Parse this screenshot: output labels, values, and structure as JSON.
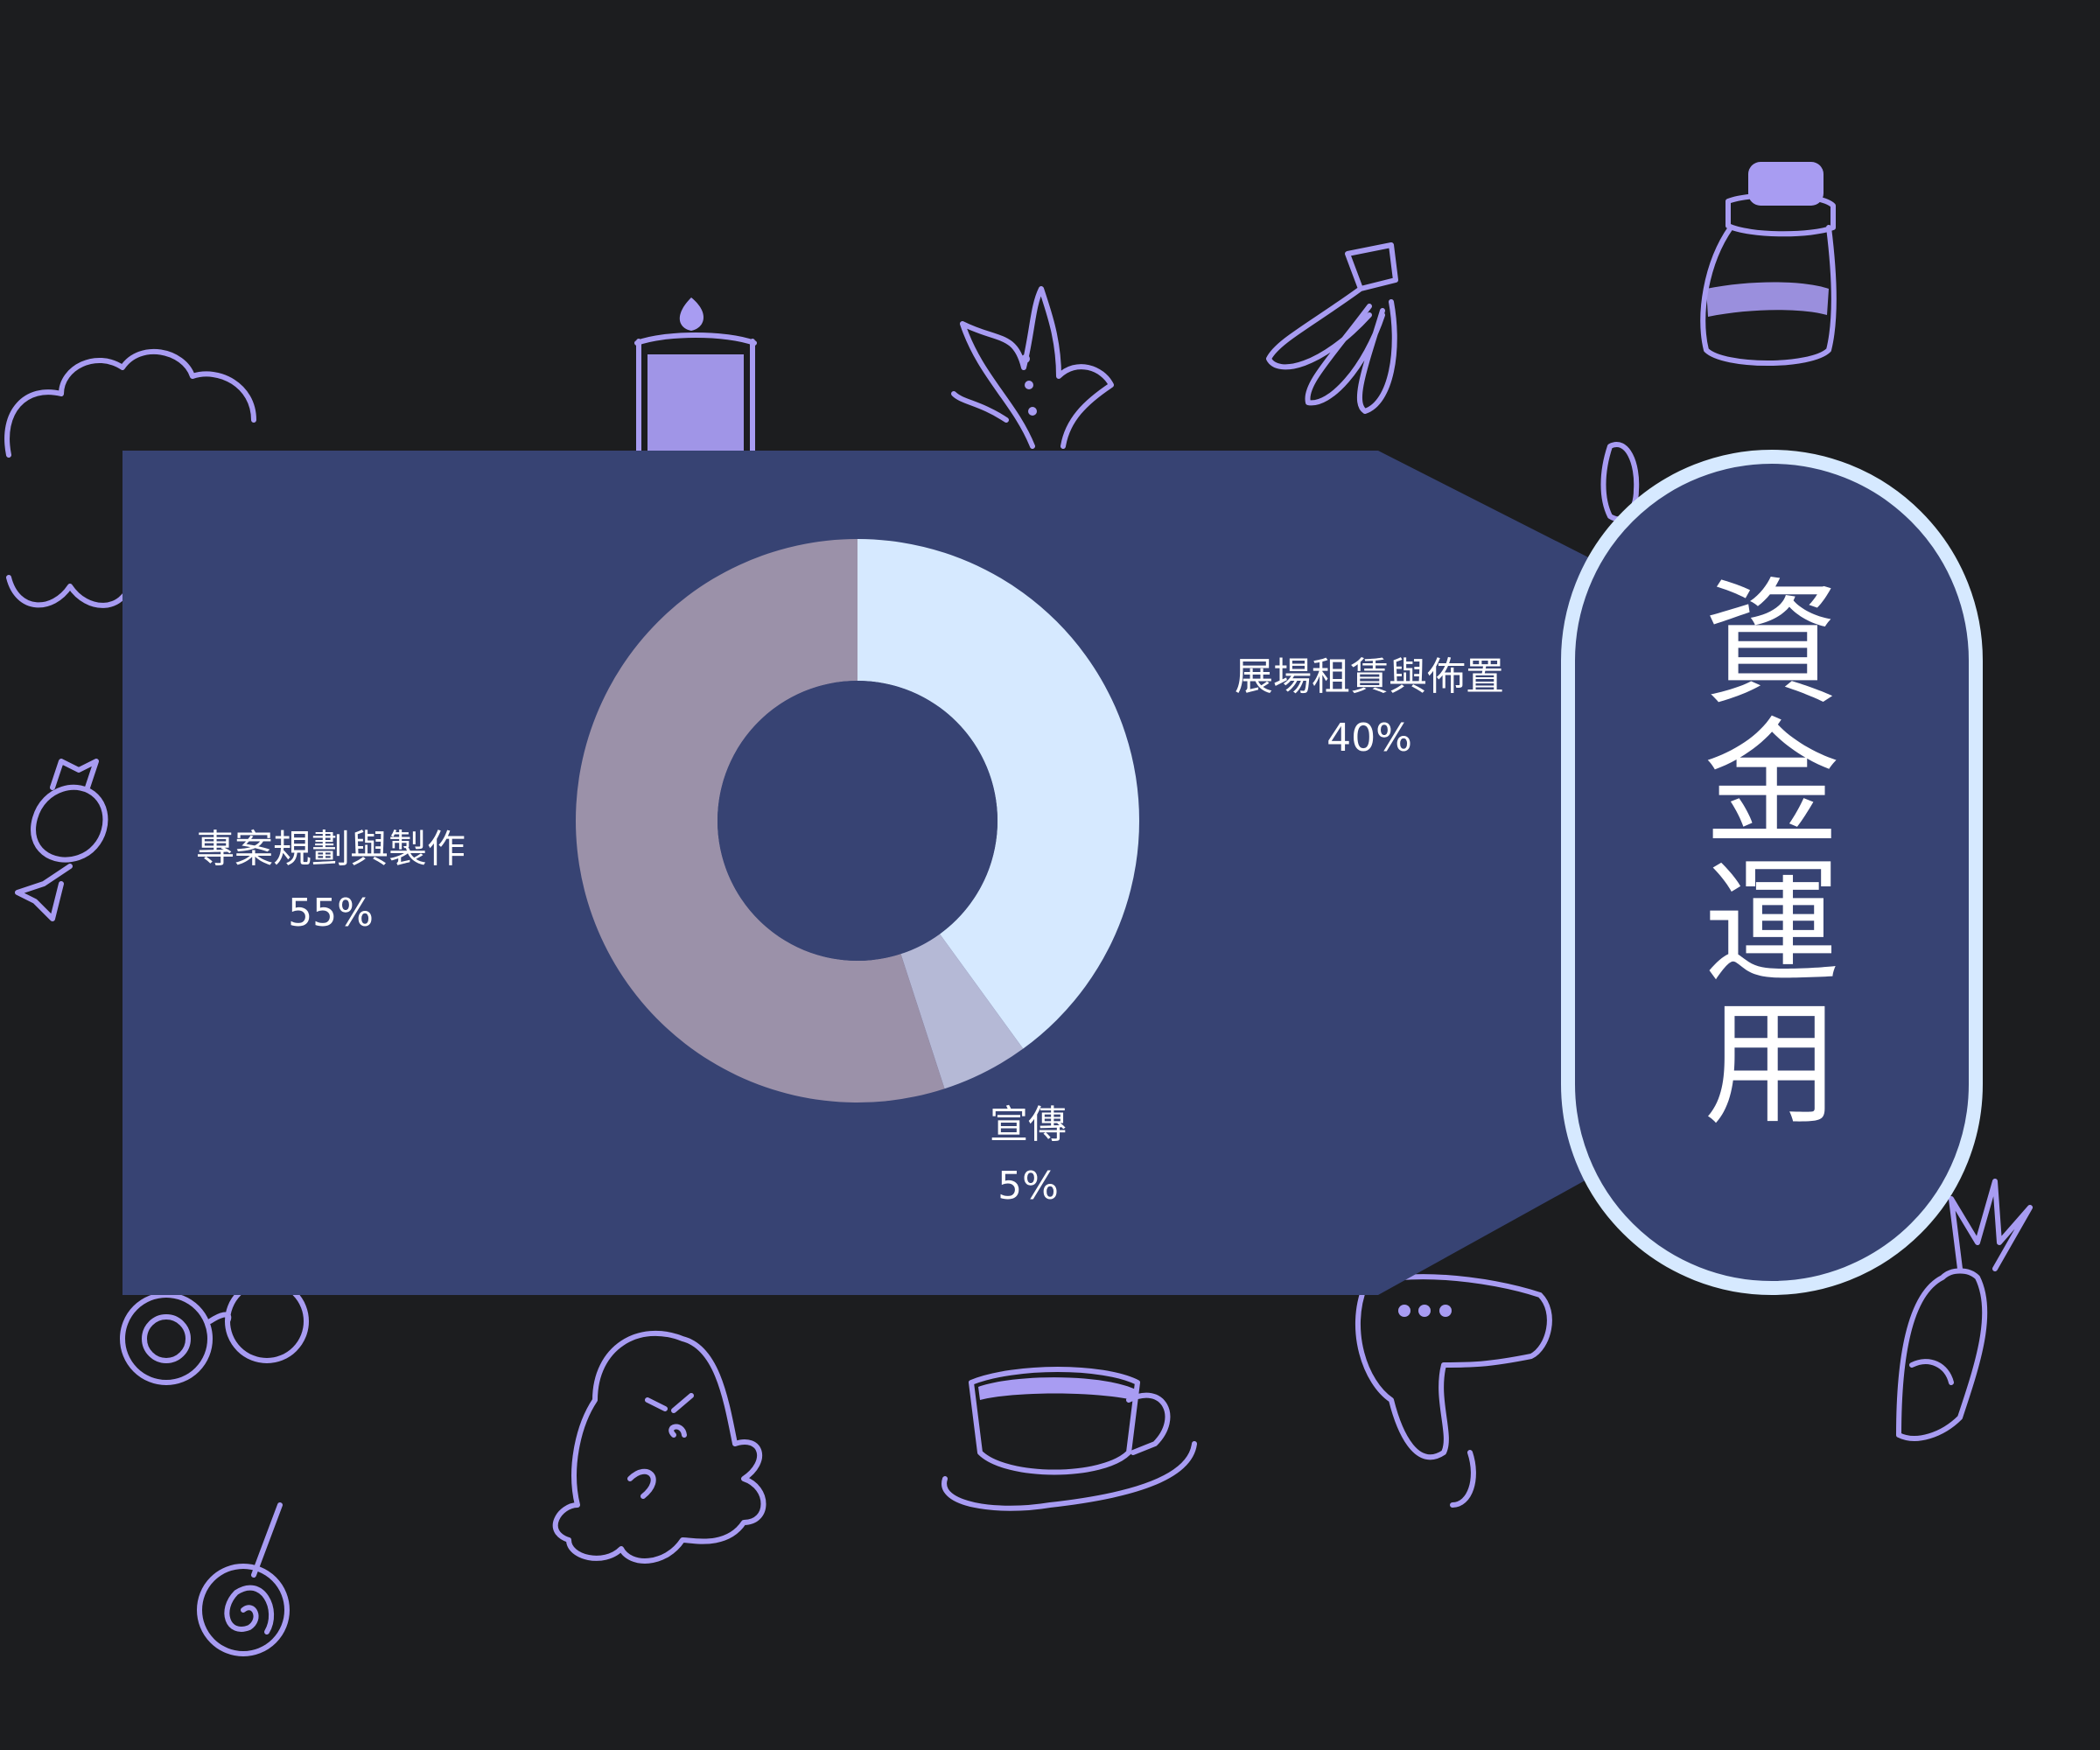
{
  "colors": {
    "background": "#1c1d1f",
    "panel": "#374373",
    "doodle": "#a89cf2",
    "pill_border": "#d6e9ff"
  },
  "title": "資金運用",
  "chart_data": {
    "type": "pie",
    "donut": true,
    "slices": [
      {
        "label": "展場租賃與佈置",
        "value": 40,
        "value_label": "40%",
        "color": "#d6e9ff"
      },
      {
        "label": "宣傳",
        "value": 5,
        "value_label": "5%",
        "color": "#b5b9d6"
      },
      {
        "label": "專案規劃與製作",
        "value": 55,
        "value_label": "55%",
        "color": "#9b91a9"
      }
    ]
  },
  "decorations": [
    "cloud-icon",
    "candle-icon",
    "leaf-icon",
    "banana-icon",
    "jar-icon",
    "candy-icon",
    "glasses-icon",
    "ghost-icon",
    "lollipop-icon",
    "teacup-icon",
    "hairdryer-icon",
    "carrot-icon",
    "bandage-icon"
  ]
}
